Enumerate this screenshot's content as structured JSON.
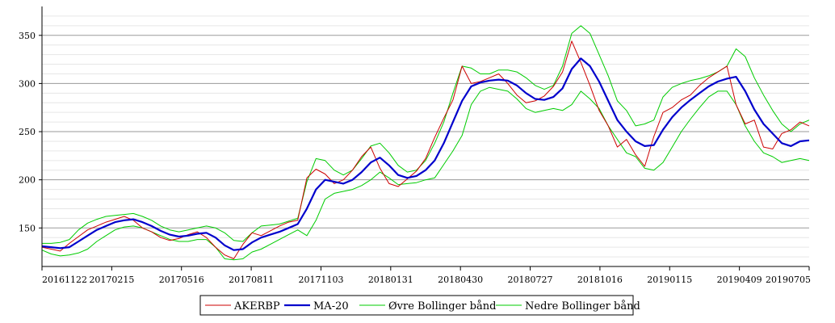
{
  "chart_data": {
    "type": "line",
    "title": "",
    "xlabel": "",
    "ylabel": "",
    "ylim": [
      110,
      380
    ],
    "yticks": [
      150,
      200,
      250,
      300,
      350
    ],
    "grid": {
      "major": true,
      "minor": true
    },
    "legend_placement": "bottom-center",
    "x_ticks": [
      "20161122",
      "20170215",
      "20170516",
      "20170811",
      "20171103",
      "20180131",
      "20180430",
      "20180727",
      "20181016",
      "20190115",
      "20190409",
      "20190705"
    ],
    "series": [
      {
        "name": "AKERBP",
        "color": "#cc0000",
        "values": [
          130,
          128,
          126,
          134,
          141,
          148,
          152,
          156,
          159,
          162,
          158,
          150,
          146,
          140,
          137,
          139,
          143,
          146,
          140,
          130,
          122,
          118,
          133,
          145,
          142,
          147,
          152,
          156,
          158,
          202,
          211,
          206,
          196,
          200,
          210,
          224,
          234,
          212,
          196,
          193,
          201,
          209,
          222,
          244,
          264,
          283,
          318,
          300,
          302,
          306,
          310,
          300,
          288,
          280,
          282,
          287,
          297,
          312,
          344,
          322,
          298,
          272,
          256,
          234,
          242,
          226,
          214,
          245,
          270,
          275,
          283,
          288,
          298,
          306,
          312,
          318,
          278,
          258,
          262,
          234,
          232,
          248,
          252,
          260,
          256
        ]
      },
      {
        "name": "MA-20",
        "color": "#0000cc",
        "values": [
          131,
          130,
          129,
          130,
          136,
          142,
          148,
          152,
          156,
          158,
          159,
          156,
          152,
          147,
          143,
          141,
          142,
          144,
          145,
          140,
          132,
          127,
          128,
          135,
          140,
          143,
          146,
          150,
          154,
          170,
          190,
          200,
          198,
          196,
          200,
          208,
          218,
          223,
          215,
          205,
          202,
          204,
          210,
          220,
          238,
          260,
          282,
          297,
          301,
          303,
          304,
          303,
          298,
          290,
          284,
          283,
          286,
          295,
          315,
          326,
          318,
          302,
          282,
          262,
          250,
          240,
          235,
          236,
          252,
          265,
          275,
          283,
          290,
          297,
          302,
          305,
          307,
          292,
          273,
          258,
          248,
          238,
          235,
          240,
          241
        ]
      },
      {
        "name": "Øvre Bollinger bånd",
        "color": "#00cc00",
        "values": [
          134,
          134,
          135,
          138,
          148,
          155,
          159,
          162,
          163,
          164,
          165,
          162,
          158,
          152,
          148,
          146,
          148,
          150,
          152,
          150,
          145,
          137,
          136,
          145,
          152,
          153,
          154,
          157,
          160,
          198,
          222,
          220,
          210,
          205,
          210,
          222,
          235,
          238,
          228,
          215,
          208,
          210,
          220,
          238,
          260,
          290,
          318,
          316,
          310,
          310,
          314,
          314,
          312,
          306,
          298,
          294,
          298,
          318,
          352,
          360,
          352,
          330,
          308,
          282,
          272,
          256,
          258,
          262,
          286,
          296,
          300,
          303,
          305,
          308,
          312,
          318,
          336,
          328,
          306,
          288,
          272,
          258,
          250,
          258,
          262
        ]
      },
      {
        "name": "Nedre Bollinger bånd",
        "color": "#00cc00",
        "values": [
          127,
          123,
          121,
          122,
          124,
          128,
          136,
          142,
          148,
          151,
          152,
          150,
          146,
          142,
          138,
          136,
          136,
          138,
          138,
          130,
          118,
          117,
          118,
          125,
          128,
          133,
          138,
          143,
          148,
          142,
          158,
          180,
          186,
          188,
          190,
          194,
          200,
          208,
          202,
          195,
          196,
          197,
          200,
          202,
          216,
          230,
          246,
          278,
          292,
          296,
          294,
          292,
          284,
          274,
          270,
          272,
          274,
          272,
          278,
          292,
          284,
          274,
          256,
          242,
          228,
          224,
          212,
          210,
          218,
          234,
          250,
          263,
          275,
          286,
          292,
          292,
          278,
          256,
          240,
          228,
          224,
          218,
          220,
          222,
          220
        ]
      }
    ]
  }
}
